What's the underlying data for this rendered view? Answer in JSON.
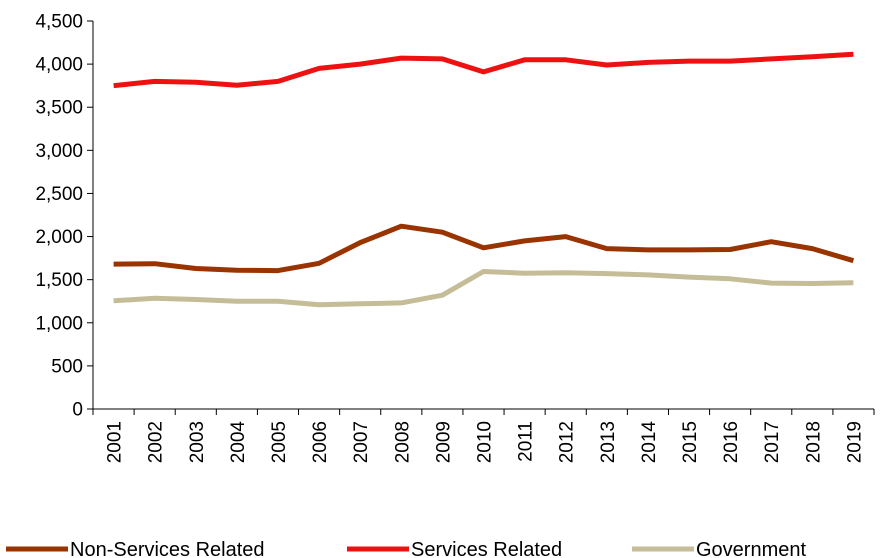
{
  "chart_data": {
    "type": "line",
    "title": "",
    "xlabel": "",
    "ylabel": "",
    "ylim": [
      0,
      4500
    ],
    "y_ticks": [
      "0",
      "500",
      "1,000",
      "1,500",
      "2,000",
      "2,500",
      "3,000",
      "3,500",
      "4,000",
      "4,500"
    ],
    "y_tick_values": [
      0,
      500,
      1000,
      1500,
      2000,
      2500,
      3000,
      3500,
      4000,
      4500
    ],
    "categories": [
      "2001",
      "2002",
      "2003",
      "2004",
      "2005",
      "2006",
      "2007",
      "2008",
      "2009",
      "2010",
      "2011",
      "2012",
      "2013",
      "2014",
      "2015",
      "2016",
      "2017",
      "2018",
      "2019"
    ],
    "grid": false,
    "legend_position": "bottom",
    "series": [
      {
        "name": "Non-Services Related",
        "color": "#993300",
        "values": [
          1680,
          1685,
          1630,
          1610,
          1605,
          1690,
          1930,
          2120,
          2050,
          1870,
          1950,
          2000,
          1860,
          1845,
          1845,
          1850,
          1940,
          1860,
          1720
        ]
      },
      {
        "name": "Services Related",
        "color": "#ee1111",
        "values": [
          3750,
          3800,
          3790,
          3755,
          3800,
          3950,
          4000,
          4070,
          4060,
          3910,
          4050,
          4050,
          3990,
          4020,
          4035,
          4035,
          4060,
          4085,
          4115
        ]
      },
      {
        "name": "Government",
        "color": "#c4bd97",
        "values": [
          1255,
          1285,
          1270,
          1250,
          1250,
          1210,
          1220,
          1230,
          1320,
          1595,
          1575,
          1580,
          1570,
          1555,
          1530,
          1510,
          1460,
          1455,
          1465
        ]
      }
    ]
  }
}
